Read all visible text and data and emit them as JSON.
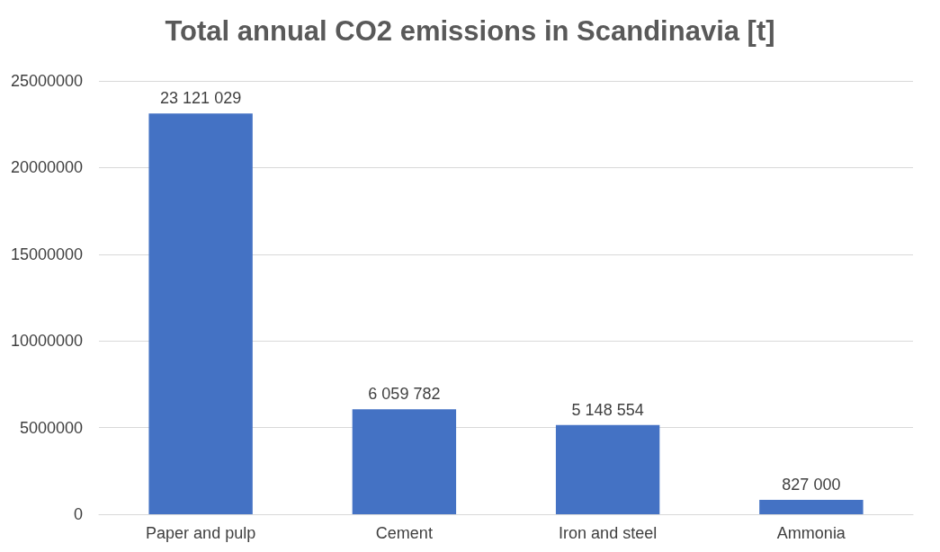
{
  "chart_data": {
    "type": "bar",
    "title": "Total annual CO2 emissions in Scandinavia [t]",
    "categories": [
      "Paper and pulp",
      "Cement",
      "Iron and steel",
      "Ammonia"
    ],
    "values": [
      23121029,
      6059782,
      5148554,
      827000
    ],
    "value_labels": [
      "23 121 029",
      "6 059 782",
      "5 148 554",
      "827 000"
    ],
    "color": "#4472c4",
    "ylim": [
      0,
      25000000
    ],
    "yticks": [
      0,
      5000000,
      10000000,
      15000000,
      20000000,
      25000000
    ],
    "grid": "y"
  }
}
